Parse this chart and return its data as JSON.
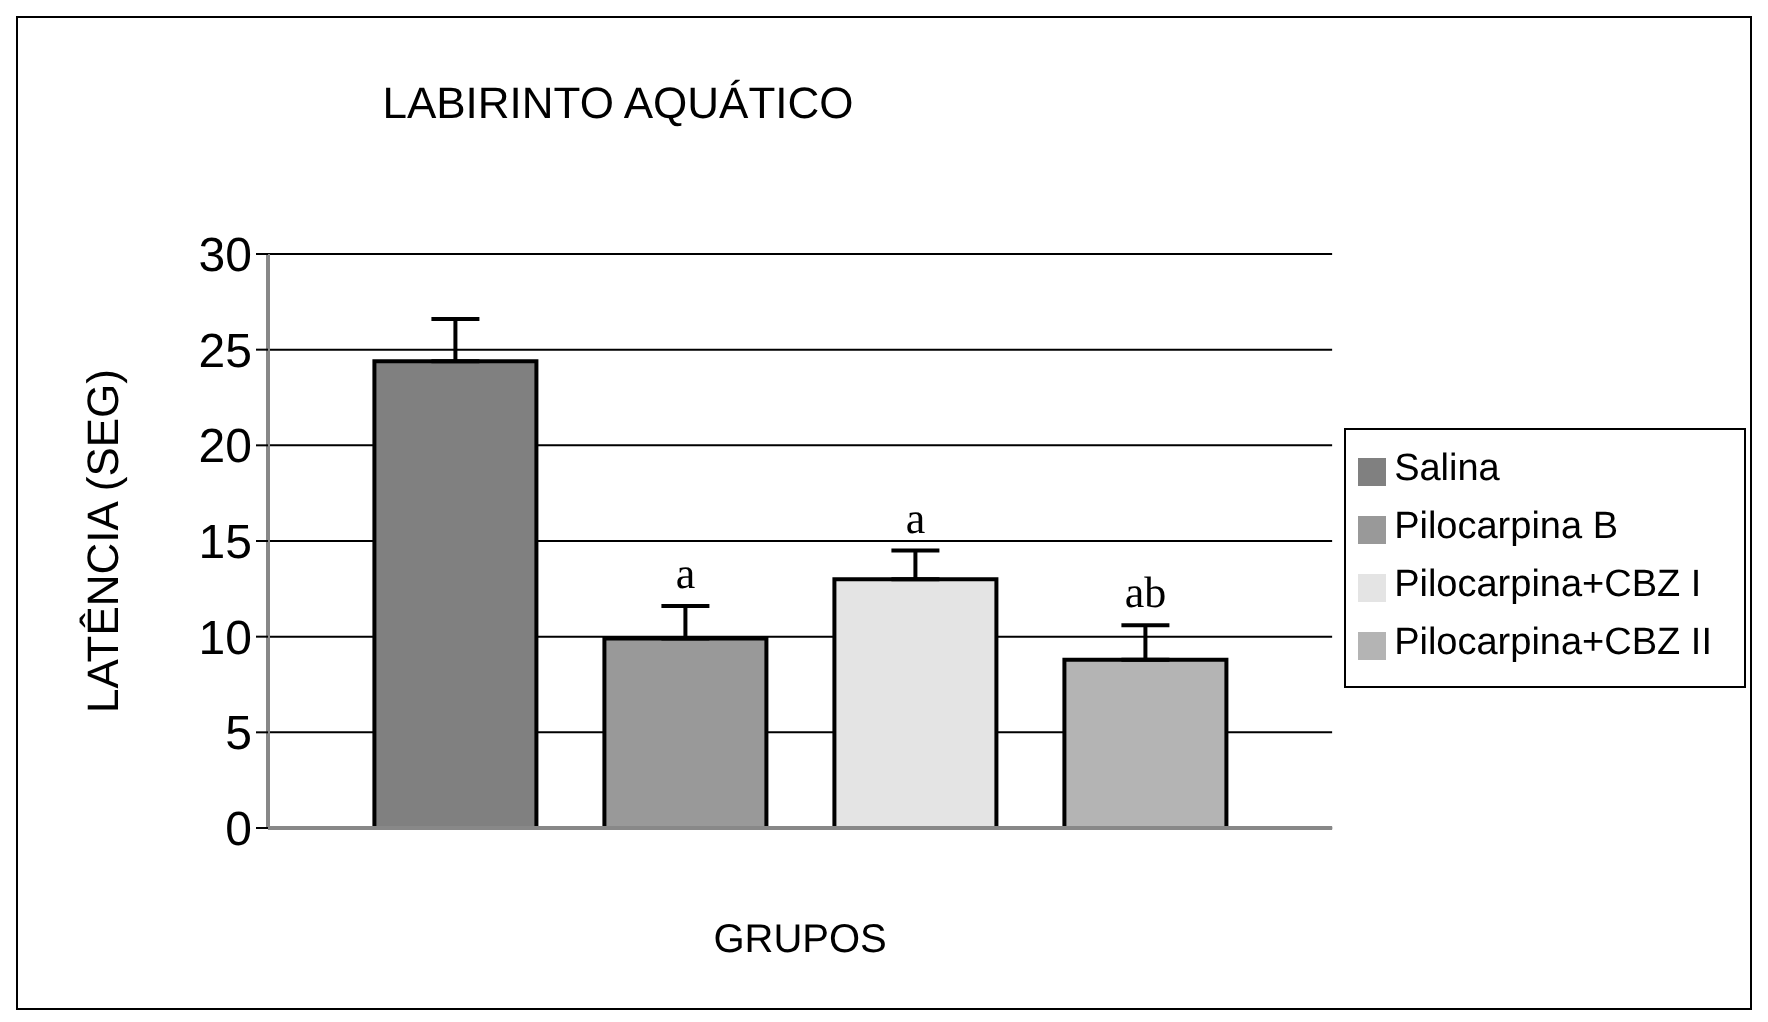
{
  "chart_data": {
    "type": "bar",
    "title": "LABIRINTO AQUÁTICO",
    "xlabel": "GRUPOS",
    "ylabel": "LATÊNCIA (SEG)",
    "categories": [
      null
    ],
    "series": [
      {
        "name": "Salina",
        "color": "#808080",
        "values": [
          24.4
        ],
        "errors": [
          [
            24.4,
            26.6
          ]
        ]
      },
      {
        "name": "Pilocarpina B",
        "color": "#999999",
        "values": [
          9.9
        ],
        "errors": [
          [
            9.9,
            11.6
          ]
        ],
        "value_labels": [
          "a"
        ]
      },
      {
        "name": "Pilocarpina+CBZ I",
        "color": "#e4e4e4",
        "values": [
          13.0
        ],
        "errors": [
          [
            13.0,
            14.5
          ]
        ],
        "value_labels": [
          "a"
        ]
      },
      {
        "name": "Pilocarpina+CBZ II",
        "color": "#b4b4b4",
        "values": [
          8.8
        ],
        "errors": [
          [
            8.8,
            10.6
          ]
        ],
        "value_labels": [
          "ab"
        ]
      }
    ],
    "ylim": [
      0,
      30
    ],
    "yticks": [
      0,
      5,
      10,
      15,
      20,
      25,
      30
    ],
    "grid": "y",
    "legend": "right",
    "tick_labels": "y"
  }
}
